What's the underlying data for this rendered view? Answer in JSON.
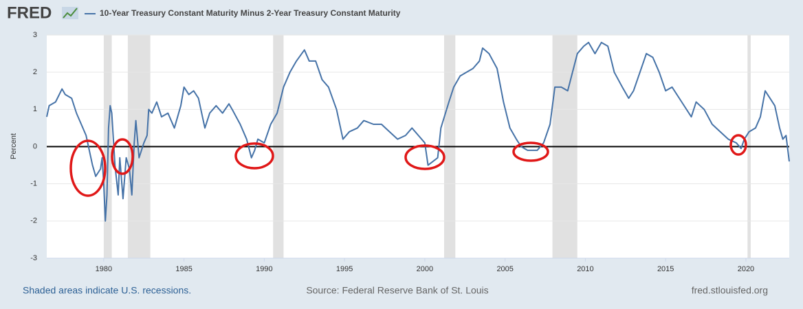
{
  "chart_data": {
    "type": "line",
    "logo": "FRED",
    "ylabel": "Percent",
    "notes": {
      "left": "Shaded areas indicate U.S. recessions.",
      "source": "Source: Federal Reserve Bank of St. Louis",
      "site": "fred.stlouisfed.org"
    },
    "xlim": [
      1976.45,
      2022.7
    ],
    "ylim": [
      -3,
      3
    ],
    "xticks": [
      1980,
      1985,
      1990,
      1995,
      2000,
      2005,
      2010,
      2015,
      2020
    ],
    "yticks": [
      -3,
      -2,
      -1,
      0,
      1,
      2,
      3
    ],
    "grid": true,
    "recessions": [
      [
        1980.0,
        1980.5
      ],
      [
        1981.5,
        1982.9
      ],
      [
        1990.55,
        1991.2
      ],
      [
        2001.2,
        2001.9
      ],
      [
        2007.95,
        2009.5
      ],
      [
        2020.1,
        2020.3
      ]
    ],
    "recession_color": "#e1e1e1",
    "x": [
      1976.45,
      1976.6,
      1977.0,
      1977.4,
      1977.6,
      1978.0,
      1978.3,
      1978.6,
      1978.9,
      1979.1,
      1979.3,
      1979.5,
      1979.8,
      1979.9,
      1980.0,
      1980.1,
      1980.2,
      1980.3,
      1980.4,
      1980.5,
      1980.7,
      1980.9,
      1981.0,
      1981.2,
      1981.4,
      1981.6,
      1981.75,
      1981.9,
      1982.0,
      1982.2,
      1982.5,
      1982.7,
      1982.8,
      1983.0,
      1983.3,
      1983.6,
      1984.0,
      1984.4,
      1984.8,
      1985.0,
      1985.3,
      1985.6,
      1985.9,
      1986.3,
      1986.6,
      1987.0,
      1987.4,
      1987.8,
      1988.0,
      1988.5,
      1988.9,
      1989.2,
      1989.4,
      1989.6,
      1990.0,
      1990.4,
      1990.8,
      1991.2,
      1991.6,
      1992.0,
      1992.5,
      1992.8,
      1993.2,
      1993.6,
      1994.0,
      1994.5,
      1994.9,
      1995.3,
      1995.8,
      1996.2,
      1996.8,
      1997.3,
      1997.8,
      1998.3,
      1998.8,
      1999.2,
      1999.6,
      2000.0,
      2000.2,
      2000.5,
      2000.8,
      2001.0,
      2001.5,
      2001.8,
      2002.2,
      2002.6,
      2003.0,
      2003.4,
      2003.6,
      2004.0,
      2004.5,
      2004.9,
      2005.3,
      2005.7,
      2006.0,
      2006.4,
      2006.7,
      2007.0,
      2007.4,
      2007.8,
      2008.1,
      2008.5,
      2008.9,
      2009.2,
      2009.5,
      2009.9,
      2010.2,
      2010.6,
      2011.0,
      2011.4,
      2011.8,
      2012.3,
      2012.7,
      2013.0,
      2013.4,
      2013.8,
      2014.2,
      2014.6,
      2015.0,
      2015.4,
      2016.0,
      2016.6,
      2016.9,
      2017.4,
      2017.9,
      2018.4,
      2018.9,
      2019.4,
      2019.7,
      2019.9,
      2020.2,
      2020.6,
      2020.9,
      2021.2,
      2021.5,
      2021.8,
      2022.1,
      2022.3,
      2022.5,
      2022.7
    ],
    "series": [
      {
        "name": "10-Year Treasury Constant Maturity Minus 2-Year Treasury Constant Maturity",
        "color": "#4572a7",
        "values": [
          0.8,
          1.1,
          1.2,
          1.55,
          1.4,
          1.3,
          0.9,
          0.6,
          0.3,
          -0.1,
          -0.5,
          -0.8,
          -0.6,
          -0.3,
          -1.0,
          -2.0,
          -1.3,
          0.5,
          1.1,
          0.9,
          -0.5,
          -1.3,
          -0.3,
          -1.4,
          -0.3,
          -0.6,
          -1.3,
          0.1,
          0.7,
          -0.3,
          0.1,
          0.3,
          1.0,
          0.9,
          1.2,
          0.8,
          0.9,
          0.5,
          1.1,
          1.6,
          1.4,
          1.5,
          1.3,
          0.5,
          0.9,
          1.1,
          0.9,
          1.15,
          1.0,
          0.6,
          0.2,
          -0.3,
          -0.1,
          0.2,
          0.1,
          0.6,
          0.9,
          1.6,
          2.0,
          2.3,
          2.6,
          2.3,
          2.3,
          1.8,
          1.6,
          1.0,
          0.2,
          0.4,
          0.5,
          0.7,
          0.6,
          0.6,
          0.4,
          0.2,
          0.3,
          0.5,
          0.3,
          0.1,
          -0.5,
          -0.4,
          -0.3,
          0.5,
          1.2,
          1.6,
          1.9,
          2.0,
          2.1,
          2.3,
          2.65,
          2.5,
          2.1,
          1.2,
          0.5,
          0.2,
          0.0,
          -0.1,
          -0.1,
          -0.1,
          0.1,
          0.6,
          1.6,
          1.6,
          1.5,
          2.0,
          2.5,
          2.7,
          2.8,
          2.5,
          2.8,
          2.7,
          2.0,
          1.6,
          1.3,
          1.5,
          2.0,
          2.5,
          2.4,
          2.0,
          1.5,
          1.6,
          1.2,
          0.8,
          1.2,
          1.0,
          0.6,
          0.4,
          0.2,
          0.1,
          -0.05,
          0.2,
          0.4,
          0.5,
          0.8,
          1.5,
          1.3,
          1.1,
          0.5,
          0.2,
          0.3,
          -0.4
        ]
      }
    ]
  }
}
